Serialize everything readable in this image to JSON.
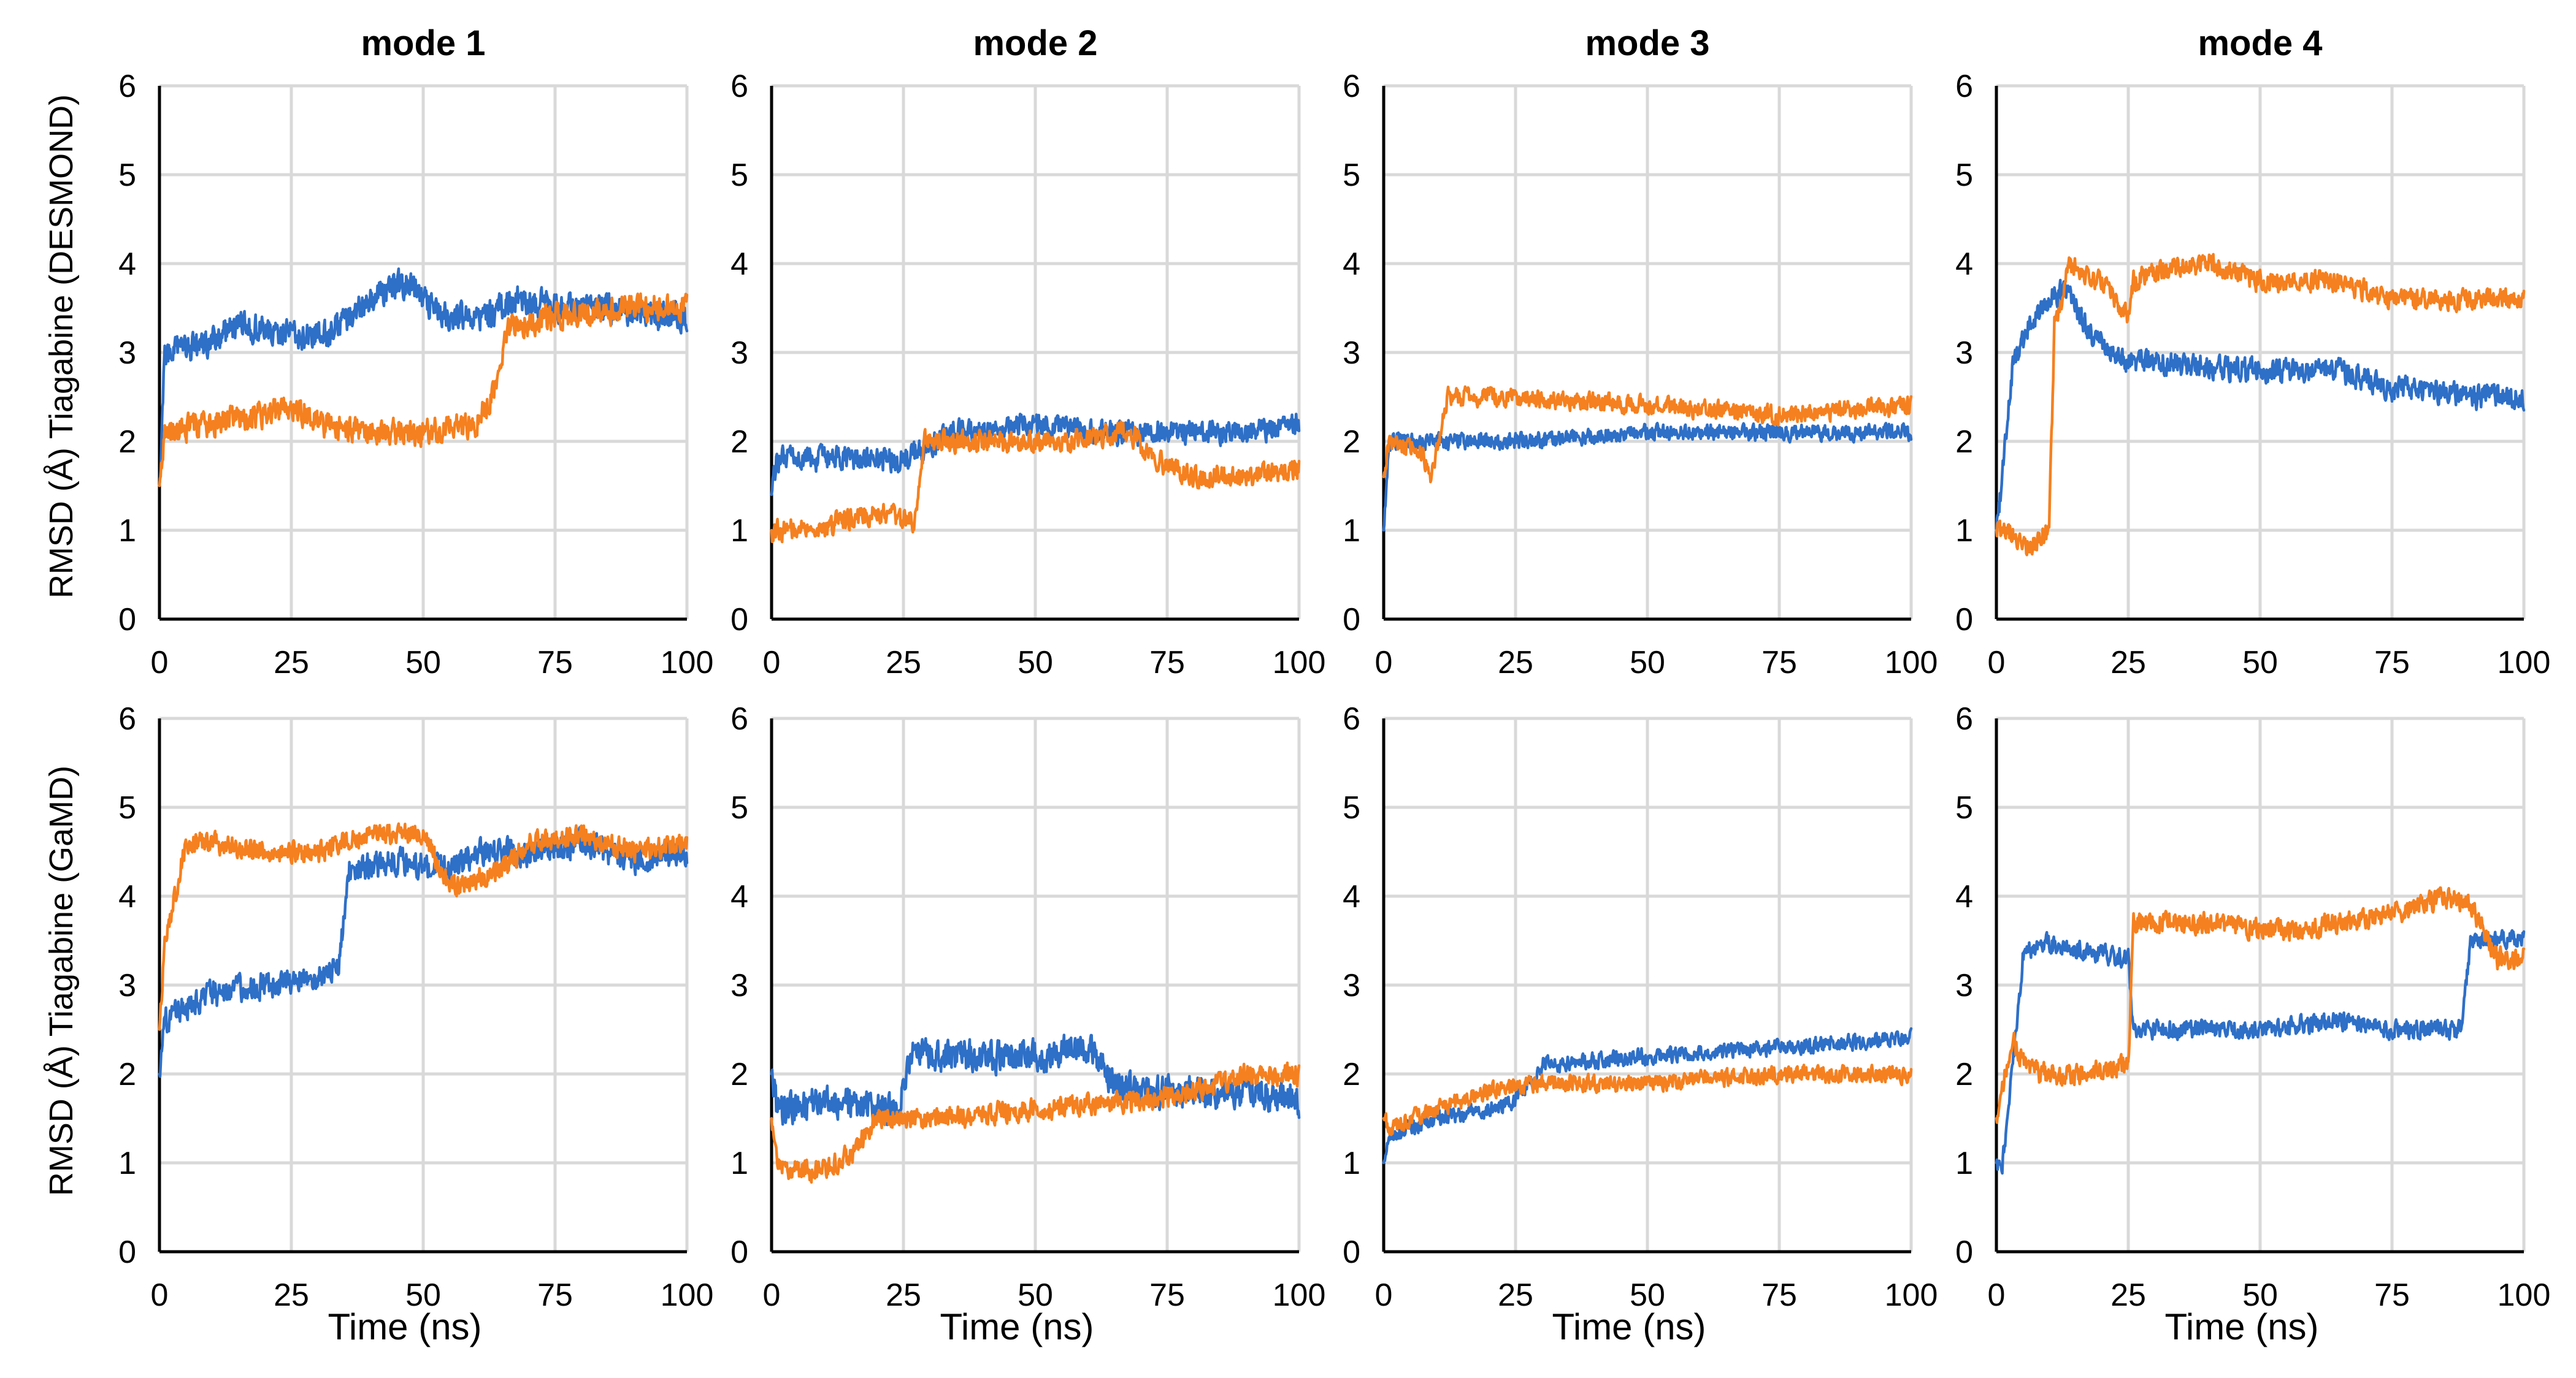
{
  "figure": {
    "row_labels": [
      "RMSD (Å) Tiagabine (DESMOND)",
      "RMSD (Å) Tiagabine (GaMD)"
    ],
    "xlabel": "Time (ns)",
    "colors": {
      "blue": "#2e6fc7",
      "orange": "#f5801f",
      "grid": "#d9d9d9",
      "axis": "#000000"
    }
  },
  "chart_data": [
    {
      "type": "line",
      "row": 0,
      "col": 0,
      "title": "mode 1",
      "xlabel": "",
      "ylabel": "RMSD (Å) Tiagabine (DESMOND)",
      "xlim": [
        0,
        100
      ],
      "ylim": [
        0,
        6
      ],
      "xticks": [
        0,
        25,
        50,
        75,
        100
      ],
      "yticks": [
        0,
        1,
        2,
        3,
        4,
        5,
        6
      ],
      "grid": true,
      "series": [
        {
          "name": "blue",
          "color": "#2e6fc7",
          "noise": 0.22,
          "x": [
            0,
            1,
            5,
            15,
            25,
            32,
            40,
            47,
            50,
            55,
            62,
            68,
            75,
            85,
            95,
            100
          ],
          "y": [
            1.5,
            3.0,
            3.0,
            3.3,
            3.2,
            3.2,
            3.6,
            3.8,
            3.6,
            3.4,
            3.4,
            3.6,
            3.5,
            3.5,
            3.4,
            3.4
          ]
        },
        {
          "name": "orange",
          "color": "#f5801f",
          "noise": 0.2,
          "x": [
            0,
            1,
            10,
            20,
            25,
            30,
            40,
            50,
            60,
            63,
            66,
            75,
            90,
            100
          ],
          "y": [
            1.5,
            2.1,
            2.2,
            2.3,
            2.4,
            2.2,
            2.1,
            2.1,
            2.2,
            2.5,
            3.3,
            3.4,
            3.5,
            3.5
          ]
        }
      ]
    },
    {
      "type": "line",
      "row": 0,
      "col": 1,
      "title": "mode 2",
      "xlabel": "",
      "ylabel": "",
      "xlim": [
        0,
        100
      ],
      "ylim": [
        0,
        6
      ],
      "xticks": [
        0,
        25,
        50,
        75,
        100
      ],
      "yticks": [
        0,
        1,
        2,
        3,
        4,
        5,
        6
      ],
      "grid": true,
      "series": [
        {
          "name": "blue",
          "color": "#2e6fc7",
          "noise": 0.18,
          "x": [
            0,
            1,
            10,
            25,
            35,
            50,
            60,
            70,
            80,
            90,
            100
          ],
          "y": [
            1.4,
            1.8,
            1.8,
            1.8,
            2.1,
            2.2,
            2.1,
            2.1,
            2.1,
            2.1,
            2.2
          ]
        },
        {
          "name": "orange",
          "color": "#f5801f",
          "noise": 0.16,
          "x": [
            0,
            1,
            10,
            20,
            27,
            29,
            40,
            55,
            68,
            72,
            80,
            90,
            100
          ],
          "y": [
            1.0,
            1.0,
            1.05,
            1.2,
            1.1,
            2.0,
            2.0,
            2.0,
            2.1,
            1.8,
            1.6,
            1.6,
            1.7
          ]
        }
      ]
    },
    {
      "type": "line",
      "row": 0,
      "col": 2,
      "title": "mode 3",
      "xlabel": "",
      "ylabel": "",
      "xlim": [
        0,
        100
      ],
      "ylim": [
        0,
        6
      ],
      "xticks": [
        0,
        25,
        50,
        75,
        100
      ],
      "yticks": [
        0,
        1,
        2,
        3,
        4,
        5,
        6
      ],
      "grid": true,
      "series": [
        {
          "name": "blue",
          "color": "#2e6fc7",
          "noise": 0.12,
          "x": [
            0,
            1,
            10,
            25,
            50,
            75,
            100
          ],
          "y": [
            1.0,
            2.0,
            2.0,
            2.0,
            2.1,
            2.1,
            2.1
          ]
        },
        {
          "name": "orange",
          "color": "#f5801f",
          "noise": 0.14,
          "x": [
            0,
            1,
            7,
            9,
            12,
            25,
            50,
            75,
            100
          ],
          "y": [
            1.6,
            2.0,
            1.9,
            1.6,
            2.5,
            2.5,
            2.4,
            2.3,
            2.4
          ]
        }
      ]
    },
    {
      "type": "line",
      "row": 0,
      "col": 3,
      "title": "mode 4",
      "xlabel": "",
      "ylabel": "",
      "xlim": [
        0,
        100
      ],
      "ylim": [
        0,
        6
      ],
      "xticks": [
        0,
        25,
        50,
        75,
        100
      ],
      "yticks": [
        0,
        1,
        2,
        3,
        4,
        5,
        6
      ],
      "grid": true,
      "series": [
        {
          "name": "blue",
          "color": "#2e6fc7",
          "noise": 0.18,
          "x": [
            0,
            1,
            3,
            6,
            10,
            13,
            18,
            25,
            50,
            65,
            75,
            90,
            100
          ],
          "y": [
            1.0,
            1.5,
            2.8,
            3.3,
            3.6,
            3.7,
            3.2,
            2.9,
            2.8,
            2.8,
            2.6,
            2.5,
            2.5
          ]
        },
        {
          "name": "orange",
          "color": "#f5801f",
          "noise": 0.16,
          "x": [
            0,
            2,
            6,
            10,
            11,
            14,
            20,
            25,
            26,
            30,
            40,
            50,
            65,
            75,
            100
          ],
          "y": [
            1.0,
            1.0,
            0.8,
            1.0,
            3.3,
            4.0,
            3.8,
            3.4,
            3.8,
            3.9,
            4.0,
            3.8,
            3.8,
            3.6,
            3.6
          ]
        }
      ]
    },
    {
      "type": "line",
      "row": 1,
      "col": 0,
      "title": "",
      "xlabel": "Time (ns)",
      "ylabel": "RMSD (Å) Tiagabine (GaMD)",
      "xlim": [
        0,
        100
      ],
      "ylim": [
        0,
        6
      ],
      "xticks": [
        0,
        25,
        50,
        75,
        100
      ],
      "yticks": [
        0,
        1,
        2,
        3,
        4,
        5,
        6
      ],
      "grid": true,
      "series": [
        {
          "name": "blue",
          "color": "#2e6fc7",
          "noise": 0.2,
          "x": [
            0,
            1,
            3,
            10,
            20,
            30,
            34,
            36,
            45,
            55,
            60,
            70,
            80,
            90,
            100
          ],
          "y": [
            2.0,
            2.6,
            2.7,
            2.9,
            3.0,
            3.1,
            3.2,
            4.3,
            4.4,
            4.3,
            4.5,
            4.5,
            4.6,
            4.4,
            4.5
          ]
        },
        {
          "name": "orange",
          "color": "#f5801f",
          "noise": 0.16,
          "x": [
            0,
            1,
            3,
            5,
            10,
            20,
            30,
            40,
            50,
            55,
            60,
            65,
            70,
            80,
            90,
            100
          ],
          "y": [
            2.5,
            3.5,
            4.0,
            4.6,
            4.6,
            4.5,
            4.5,
            4.7,
            4.7,
            4.1,
            4.2,
            4.3,
            4.6,
            4.7,
            4.5,
            4.6
          ]
        }
      ]
    },
    {
      "type": "line",
      "row": 1,
      "col": 1,
      "title": "",
      "xlabel": "Time (ns)",
      "ylabel": "",
      "xlim": [
        0,
        100
      ],
      "ylim": [
        0,
        6
      ],
      "xticks": [
        0,
        25,
        50,
        75,
        100
      ],
      "yticks": [
        0,
        1,
        2,
        3,
        4,
        5,
        6
      ],
      "grid": true,
      "series": [
        {
          "name": "blue",
          "color": "#2e6fc7",
          "noise": 0.24,
          "x": [
            0,
            1,
            10,
            20,
            24,
            26,
            40,
            50,
            60,
            65,
            70,
            80,
            90,
            100
          ],
          "y": [
            2.0,
            1.6,
            1.7,
            1.6,
            1.6,
            2.2,
            2.2,
            2.2,
            2.3,
            1.9,
            1.8,
            1.8,
            1.8,
            1.7
          ]
        },
        {
          "name": "orange",
          "color": "#f5801f",
          "noise": 0.16,
          "x": [
            0,
            1,
            5,
            10,
            15,
            20,
            30,
            50,
            70,
            80,
            90,
            100
          ],
          "y": [
            1.5,
            1.0,
            0.9,
            0.9,
            1.1,
            1.5,
            1.5,
            1.6,
            1.7,
            1.8,
            2.0,
            2.0
          ]
        }
      ]
    },
    {
      "type": "line",
      "row": 1,
      "col": 2,
      "title": "",
      "xlabel": "Time (ns)",
      "ylabel": "",
      "xlim": [
        0,
        100
      ],
      "ylim": [
        0,
        6
      ],
      "xticks": [
        0,
        25,
        50,
        75,
        100
      ],
      "yticks": [
        0,
        1,
        2,
        3,
        4,
        5,
        6
      ],
      "grid": true,
      "series": [
        {
          "name": "blue",
          "color": "#2e6fc7",
          "noise": 0.12,
          "x": [
            0,
            1,
            10,
            20,
            25,
            30,
            50,
            75,
            100
          ],
          "y": [
            1.0,
            1.3,
            1.5,
            1.6,
            1.7,
            2.1,
            2.2,
            2.3,
            2.4
          ]
        },
        {
          "name": "orange",
          "color": "#f5801f",
          "noise": 0.13,
          "x": [
            0,
            1,
            10,
            20,
            30,
            50,
            75,
            100
          ],
          "y": [
            1.5,
            1.4,
            1.6,
            1.8,
            1.9,
            1.9,
            2.0,
            2.0
          ]
        }
      ]
    },
    {
      "type": "line",
      "row": 1,
      "col": 3,
      "title": "",
      "xlabel": "Time (ns)",
      "ylabel": "",
      "xlim": [
        0,
        100
      ],
      "ylim": [
        0,
        6
      ],
      "xticks": [
        0,
        25,
        50,
        75,
        100
      ],
      "yticks": [
        0,
        1,
        2,
        3,
        4,
        5,
        6
      ],
      "grid": true,
      "series": [
        {
          "name": "blue",
          "color": "#2e6fc7",
          "noise": 0.14,
          "x": [
            0,
            1,
            3,
            5,
            8,
            15,
            25,
            26,
            28,
            40,
            50,
            65,
            75,
            88,
            90,
            100
          ],
          "y": [
            1.0,
            0.9,
            2.0,
            3.3,
            3.5,
            3.4,
            3.3,
            2.5,
            2.5,
            2.5,
            2.5,
            2.6,
            2.5,
            2.5,
            3.5,
            3.5
          ]
        },
        {
          "name": "orange",
          "color": "#f5801f",
          "noise": 0.16,
          "x": [
            0,
            1,
            3,
            5,
            8,
            15,
            25,
            26,
            28,
            40,
            55,
            75,
            85,
            90,
            95,
            100
          ],
          "y": [
            1.5,
            1.8,
            2.4,
            2.1,
            2.0,
            2.0,
            2.1,
            3.7,
            3.7,
            3.7,
            3.6,
            3.8,
            4.0,
            3.9,
            3.3,
            3.3
          ]
        }
      ]
    }
  ]
}
